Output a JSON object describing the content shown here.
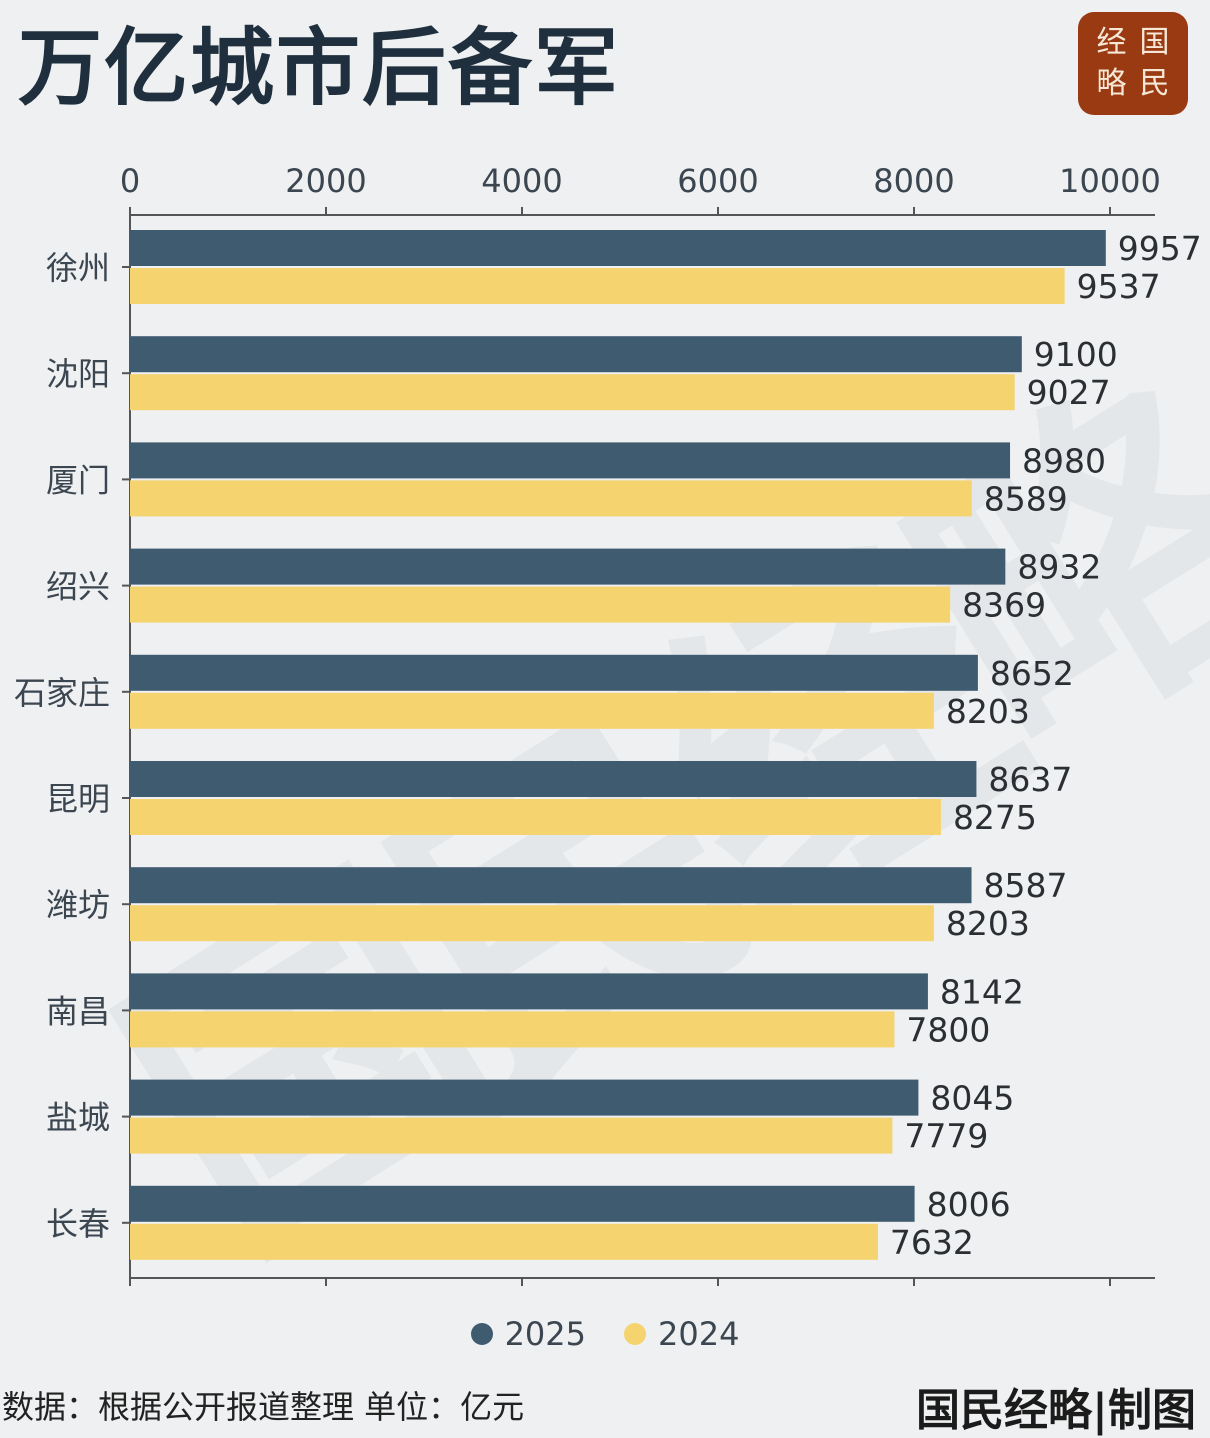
{
  "header": {
    "title": "万亿城市后备军"
  },
  "seal": {
    "chars": [
      "经",
      "国",
      "略",
      "民"
    ]
  },
  "watermark": {
    "text": "国民经略"
  },
  "chart_data": {
    "type": "bar",
    "orientation": "horizontal",
    "categories": [
      "徐州",
      "沈阳",
      "厦门",
      "绍兴",
      "石家庄",
      "昆明",
      "潍坊",
      "南昌",
      "盐城",
      "长春"
    ],
    "series": [
      {
        "name": "2025",
        "color": "#3f5b70",
        "values": [
          9957,
          9100,
          8980,
          8932,
          8652,
          8637,
          8587,
          8142,
          8045,
          8006
        ]
      },
      {
        "name": "2024",
        "color": "#f5d36e",
        "values": [
          9537,
          9027,
          8589,
          8369,
          8203,
          8275,
          8203,
          7800,
          7779,
          7632
        ]
      }
    ],
    "xlim": [
      0,
      10000
    ],
    "x_ticks": [
      "0",
      "2000",
      "4000",
      "6000",
      "8000",
      "10000"
    ],
    "x_axis_position": "top",
    "legend_position": "bottom-center",
    "grid": false
  },
  "footer": {
    "source": "数据：根据公开报道整理  单位：亿元",
    "credit": "国民经略|制图"
  }
}
